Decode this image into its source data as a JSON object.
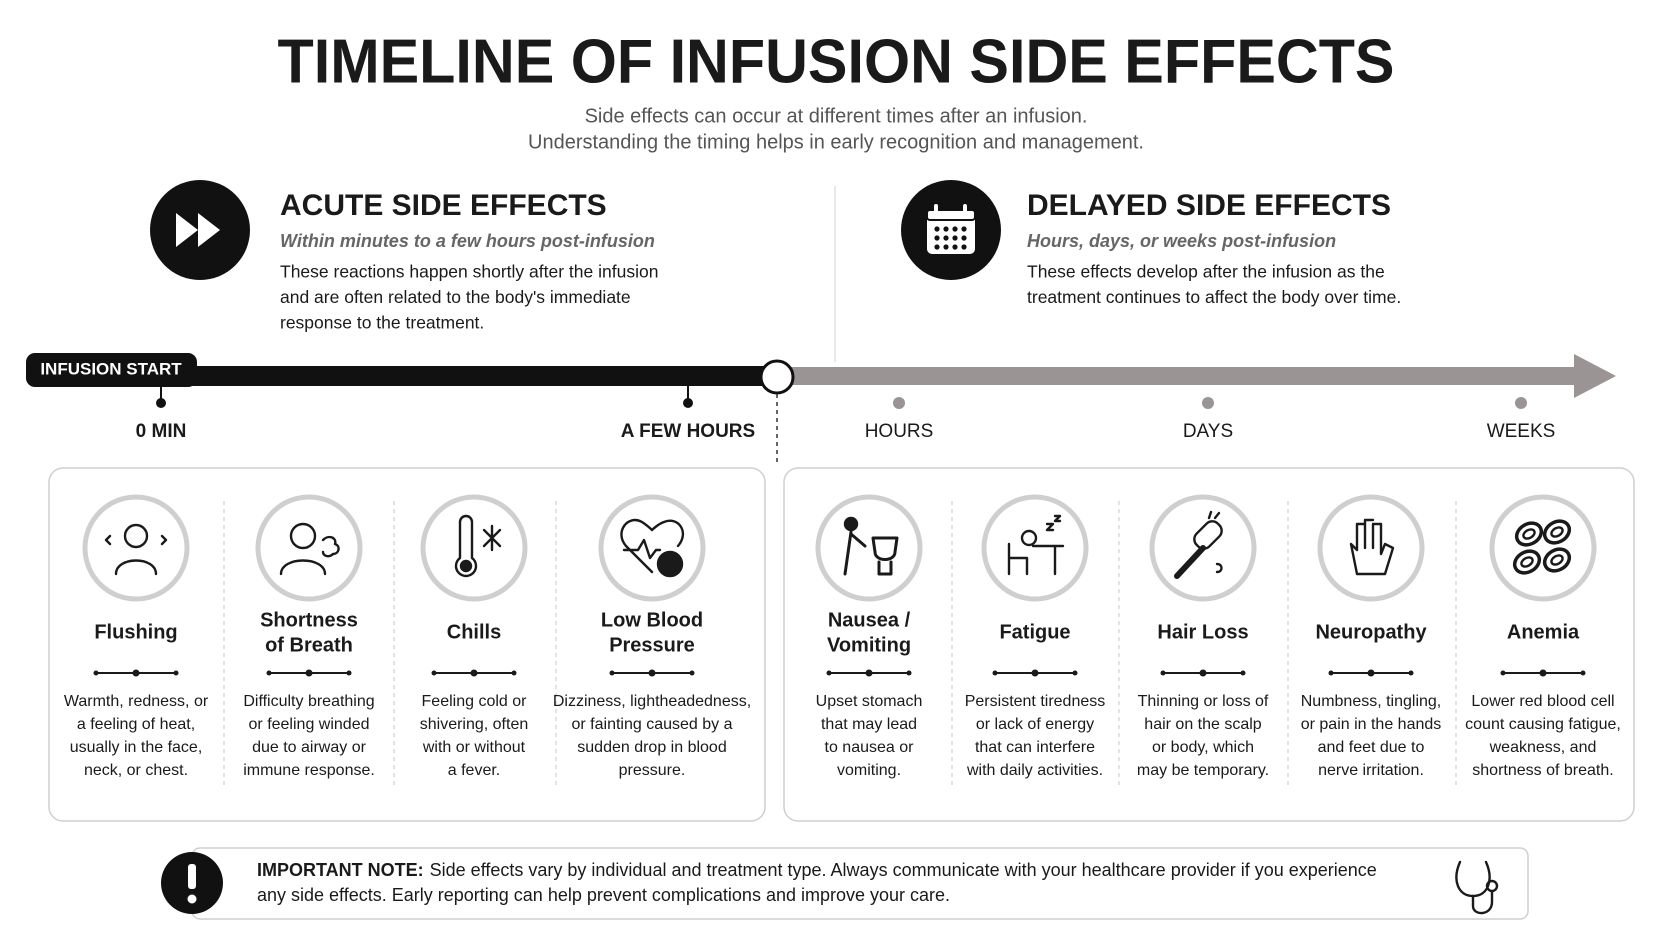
{
  "header": {
    "title": "TIMELINE OF INFUSION SIDE EFFECTS",
    "subtitle": [
      "Side effects can occur at different times after an infusion.",
      "Understanding the timing helps in early recognition and management."
    ]
  },
  "acute": {
    "heading": "ACUTE SIDE EFFECTS",
    "timing": "Within minutes to a few hours post-infusion",
    "description": [
      "These reactions happen shortly after the infusion",
      "and are often related to the body's immediate",
      "response to the treatment."
    ]
  },
  "delayed": {
    "heading": "DELAYED SIDE EFFECTS",
    "timing": "Hours, days, or weeks post-infusion",
    "description": [
      "These effects develop after the infusion as the",
      "treatment continues to affect the body over time."
    ]
  },
  "timeline": {
    "start_label": "INFUSION START",
    "acute_ticks": [
      "0 MIN",
      "A FEW HOURS"
    ],
    "delayed_ticks": [
      "HOURS",
      "DAYS",
      "WEEKS"
    ]
  },
  "acute_effects": [
    {
      "title": [
        "Flushing"
      ],
      "description": [
        "Warmth, redness, or",
        "a feeling of heat,",
        "usually in the face,",
        "neck, or chest."
      ]
    },
    {
      "title": [
        "Shortness",
        "of Breath"
      ],
      "description": [
        "Difficulty breathing",
        "or feeling winded",
        "due to airway or",
        "immune response."
      ]
    },
    {
      "title": [
        "Chills"
      ],
      "description": [
        "Feeling cold or",
        "shivering, often",
        "with or without",
        "a fever."
      ]
    },
    {
      "title": [
        "Low Blood",
        "Pressure"
      ],
      "description": [
        "Dizziness, lightheadedness,",
        "or fainting caused by a",
        "sudden drop in blood",
        "pressure."
      ]
    }
  ],
  "delayed_effects": [
    {
      "title": [
        "Nausea /",
        "Vomiting"
      ],
      "description": [
        "Upset stomach",
        "that may lead",
        "to nausea or",
        "vomiting."
      ]
    },
    {
      "title": [
        "Fatigue"
      ],
      "description": [
        "Persistent tiredness",
        "or lack of energy",
        "that can interfere",
        "with daily activities."
      ]
    },
    {
      "title": [
        "Hair Loss"
      ],
      "description": [
        "Thinning or loss of",
        "hair on the scalp",
        "or body, which",
        "may be temporary."
      ]
    },
    {
      "title": [
        "Neuropathy"
      ],
      "description": [
        "Numbness, tingling,",
        "or pain in the hands",
        "and feet due to",
        "nerve irritation."
      ]
    },
    {
      "title": [
        "Anemia"
      ],
      "description": [
        "Lower red blood cell",
        "count causing fatigue,",
        "weakness, and",
        "shortness of breath."
      ]
    }
  ],
  "note": {
    "label": "IMPORTANT NOTE:",
    "lines": [
      "Side effects vary by individual and treatment type. Always communicate with your healthcare provider if you experience",
      "any side effects. Early reporting can help prevent complications and improve your care."
    ]
  }
}
